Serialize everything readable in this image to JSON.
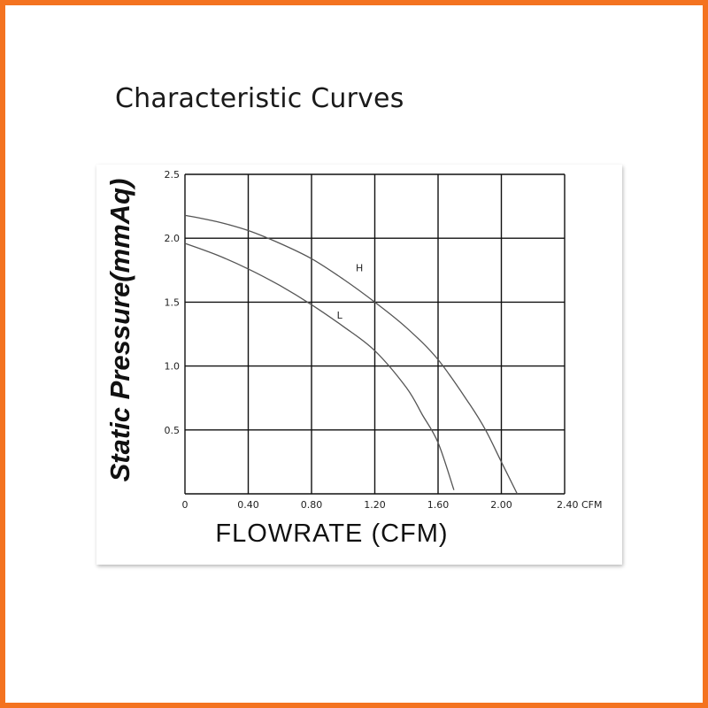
{
  "page": {
    "title": "Characteristic Curves",
    "frame_color": "#f47320"
  },
  "chart_data": {
    "type": "line",
    "xlabel": "FLOWRATE (CFM)",
    "ylabel": "Static  Pressure(mmAq)",
    "xlim": [
      0,
      2.4
    ],
    "ylim": [
      0,
      2.5
    ],
    "x_ticks": [
      "0",
      "0.40",
      "0.80",
      "1.20",
      "1.60",
      "2.00",
      "2.40 CFM"
    ],
    "x_tick_values": [
      0,
      0.4,
      0.8,
      1.2,
      1.6,
      2.0,
      2.4
    ],
    "y_ticks": [
      "0.5",
      "1.0",
      "1.5",
      "2.0",
      "2.5"
    ],
    "y_tick_values": [
      0.5,
      1.0,
      1.5,
      2.0,
      2.5
    ],
    "grid": true,
    "series": [
      {
        "name": "H",
        "x": [
          0,
          0.2,
          0.4,
          0.6,
          0.8,
          1.0,
          1.2,
          1.4,
          1.6,
          1.8,
          1.9,
          2.0,
          2.1
        ],
        "y": [
          2.18,
          2.13,
          2.06,
          1.96,
          1.84,
          1.68,
          1.5,
          1.3,
          1.05,
          0.7,
          0.5,
          0.25,
          0.0
        ],
        "label_at": [
          1.08,
          1.74
        ]
      },
      {
        "name": "L",
        "x": [
          0,
          0.2,
          0.4,
          0.6,
          0.8,
          1.0,
          1.2,
          1.4,
          1.5,
          1.6,
          1.7
        ],
        "y": [
          1.96,
          1.87,
          1.76,
          1.63,
          1.48,
          1.31,
          1.12,
          0.83,
          0.62,
          0.4,
          0.03
        ],
        "label_at": [
          0.96,
          1.37
        ]
      }
    ]
  }
}
